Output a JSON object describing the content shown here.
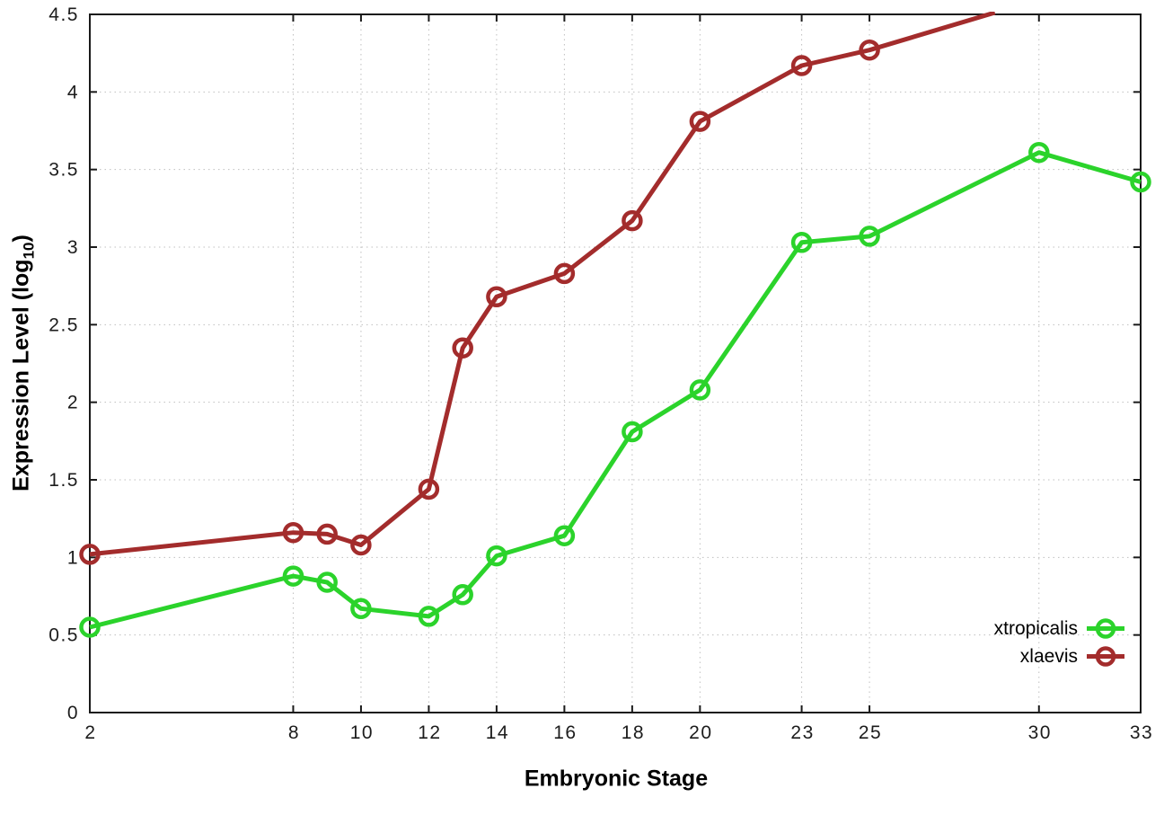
{
  "figure": {
    "xlabel": "Embryonic Stage",
    "ylabel_main": "Expression Level (log",
    "ylabel_sub": "10",
    "ylabel_close": ")",
    "background": "#ffffff"
  },
  "legend": {
    "entries": [
      {
        "label": "xtropicalis",
        "color": "#2bd32b"
      },
      {
        "label": "xlaevis",
        "color": "#a32c2c"
      }
    ],
    "position": "inside-bottom-right"
  },
  "chart_data": {
    "type": "line",
    "title": "",
    "xlabel": "Embryonic Stage",
    "ylabel": "Expression Level (log10)",
    "xlim": [
      2,
      33
    ],
    "ylim": [
      0,
      4.5
    ],
    "x_ticks": [
      2,
      8,
      10,
      12,
      14,
      16,
      18,
      20,
      23,
      25,
      30,
      33
    ],
    "x_tick_labels": [
      "2",
      "8",
      "10",
      "12",
      "14",
      "16",
      "18",
      "20",
      "23",
      "25",
      "30",
      "33"
    ],
    "y_ticks": [
      0,
      0.5,
      1,
      1.5,
      2,
      2.5,
      3,
      3.5,
      4,
      4.5
    ],
    "y_tick_labels": [
      "0",
      "0.5",
      "1",
      "1.5",
      "2",
      "2.5",
      "3",
      "3.5",
      "4",
      "4.5"
    ],
    "grid": true,
    "grid_style": "dotted",
    "marker": "open-circle",
    "colors": {
      "grid": "#bfbfbf",
      "border": "#1a1a1a",
      "tick_text": "#1c1c1c"
    },
    "series": [
      {
        "name": "xtropicalis",
        "color": "#2bd32b",
        "x": [
          2,
          8,
          9,
          10,
          12,
          13,
          14,
          16,
          18,
          20,
          23,
          25,
          30,
          33
        ],
        "values": [
          0.55,
          0.88,
          0.84,
          0.67,
          0.62,
          0.76,
          1.01,
          1.14,
          1.81,
          2.08,
          3.03,
          3.07,
          3.61,
          3.42
        ]
      },
      {
        "name": "xlaevis",
        "color": "#a32c2c",
        "x": [
          2,
          8,
          9,
          10,
          12,
          13,
          14,
          16,
          18,
          20,
          23,
          25
        ],
        "values": [
          1.02,
          1.16,
          1.15,
          1.08,
          1.44,
          2.35,
          2.68,
          2.83,
          3.17,
          3.81,
          4.17,
          4.27
        ],
        "exits_top_at_x": 28.7,
        "note": "line continues above y-axis maximum (4.5) after stage 25; clipped at plot top"
      }
    ]
  }
}
